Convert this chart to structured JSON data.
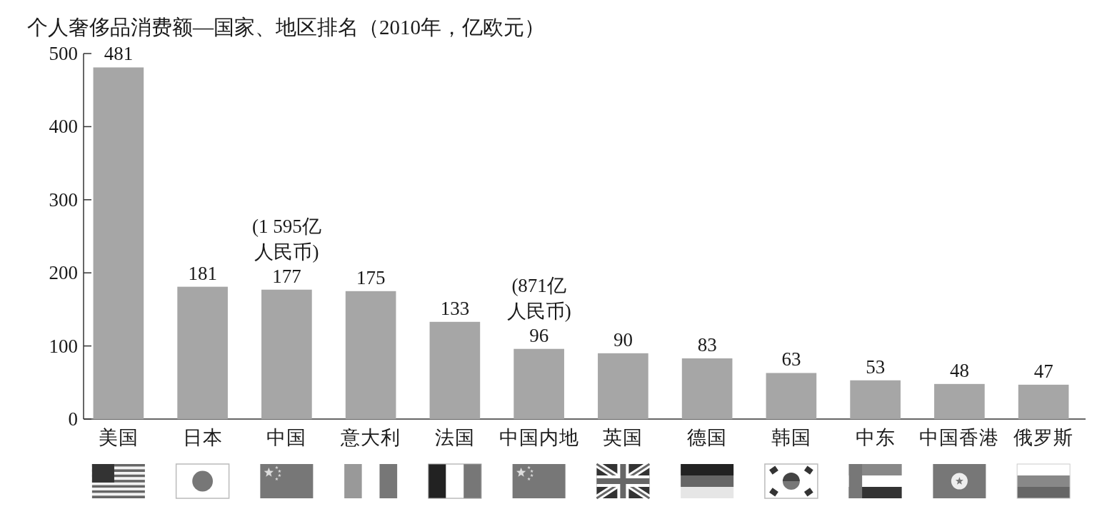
{
  "chart_data": {
    "type": "bar",
    "title": "个人奢侈品消费额—国家、地区排名（2010年，亿欧元）",
    "categories": [
      "美国",
      "日本",
      "中国",
      "意大利",
      "法国",
      "中国内地",
      "英国",
      "德国",
      "韩国",
      "中东",
      "中国香港",
      "俄罗斯"
    ],
    "values": [
      481,
      181,
      177,
      175,
      133,
      96,
      90,
      83,
      63,
      53,
      48,
      47
    ],
    "color": "#a6a6a6",
    "ylim": [
      0,
      500
    ],
    "yticks": [
      0,
      100,
      200,
      300,
      400,
      500
    ],
    "data_labels": true,
    "annotations": [
      {
        "text": "(1 595亿人民币)",
        "x": "中国",
        "y": 177
      },
      {
        "text": "(871亿人民币)",
        "x": "中国内地",
        "y": 96
      }
    ]
  }
}
